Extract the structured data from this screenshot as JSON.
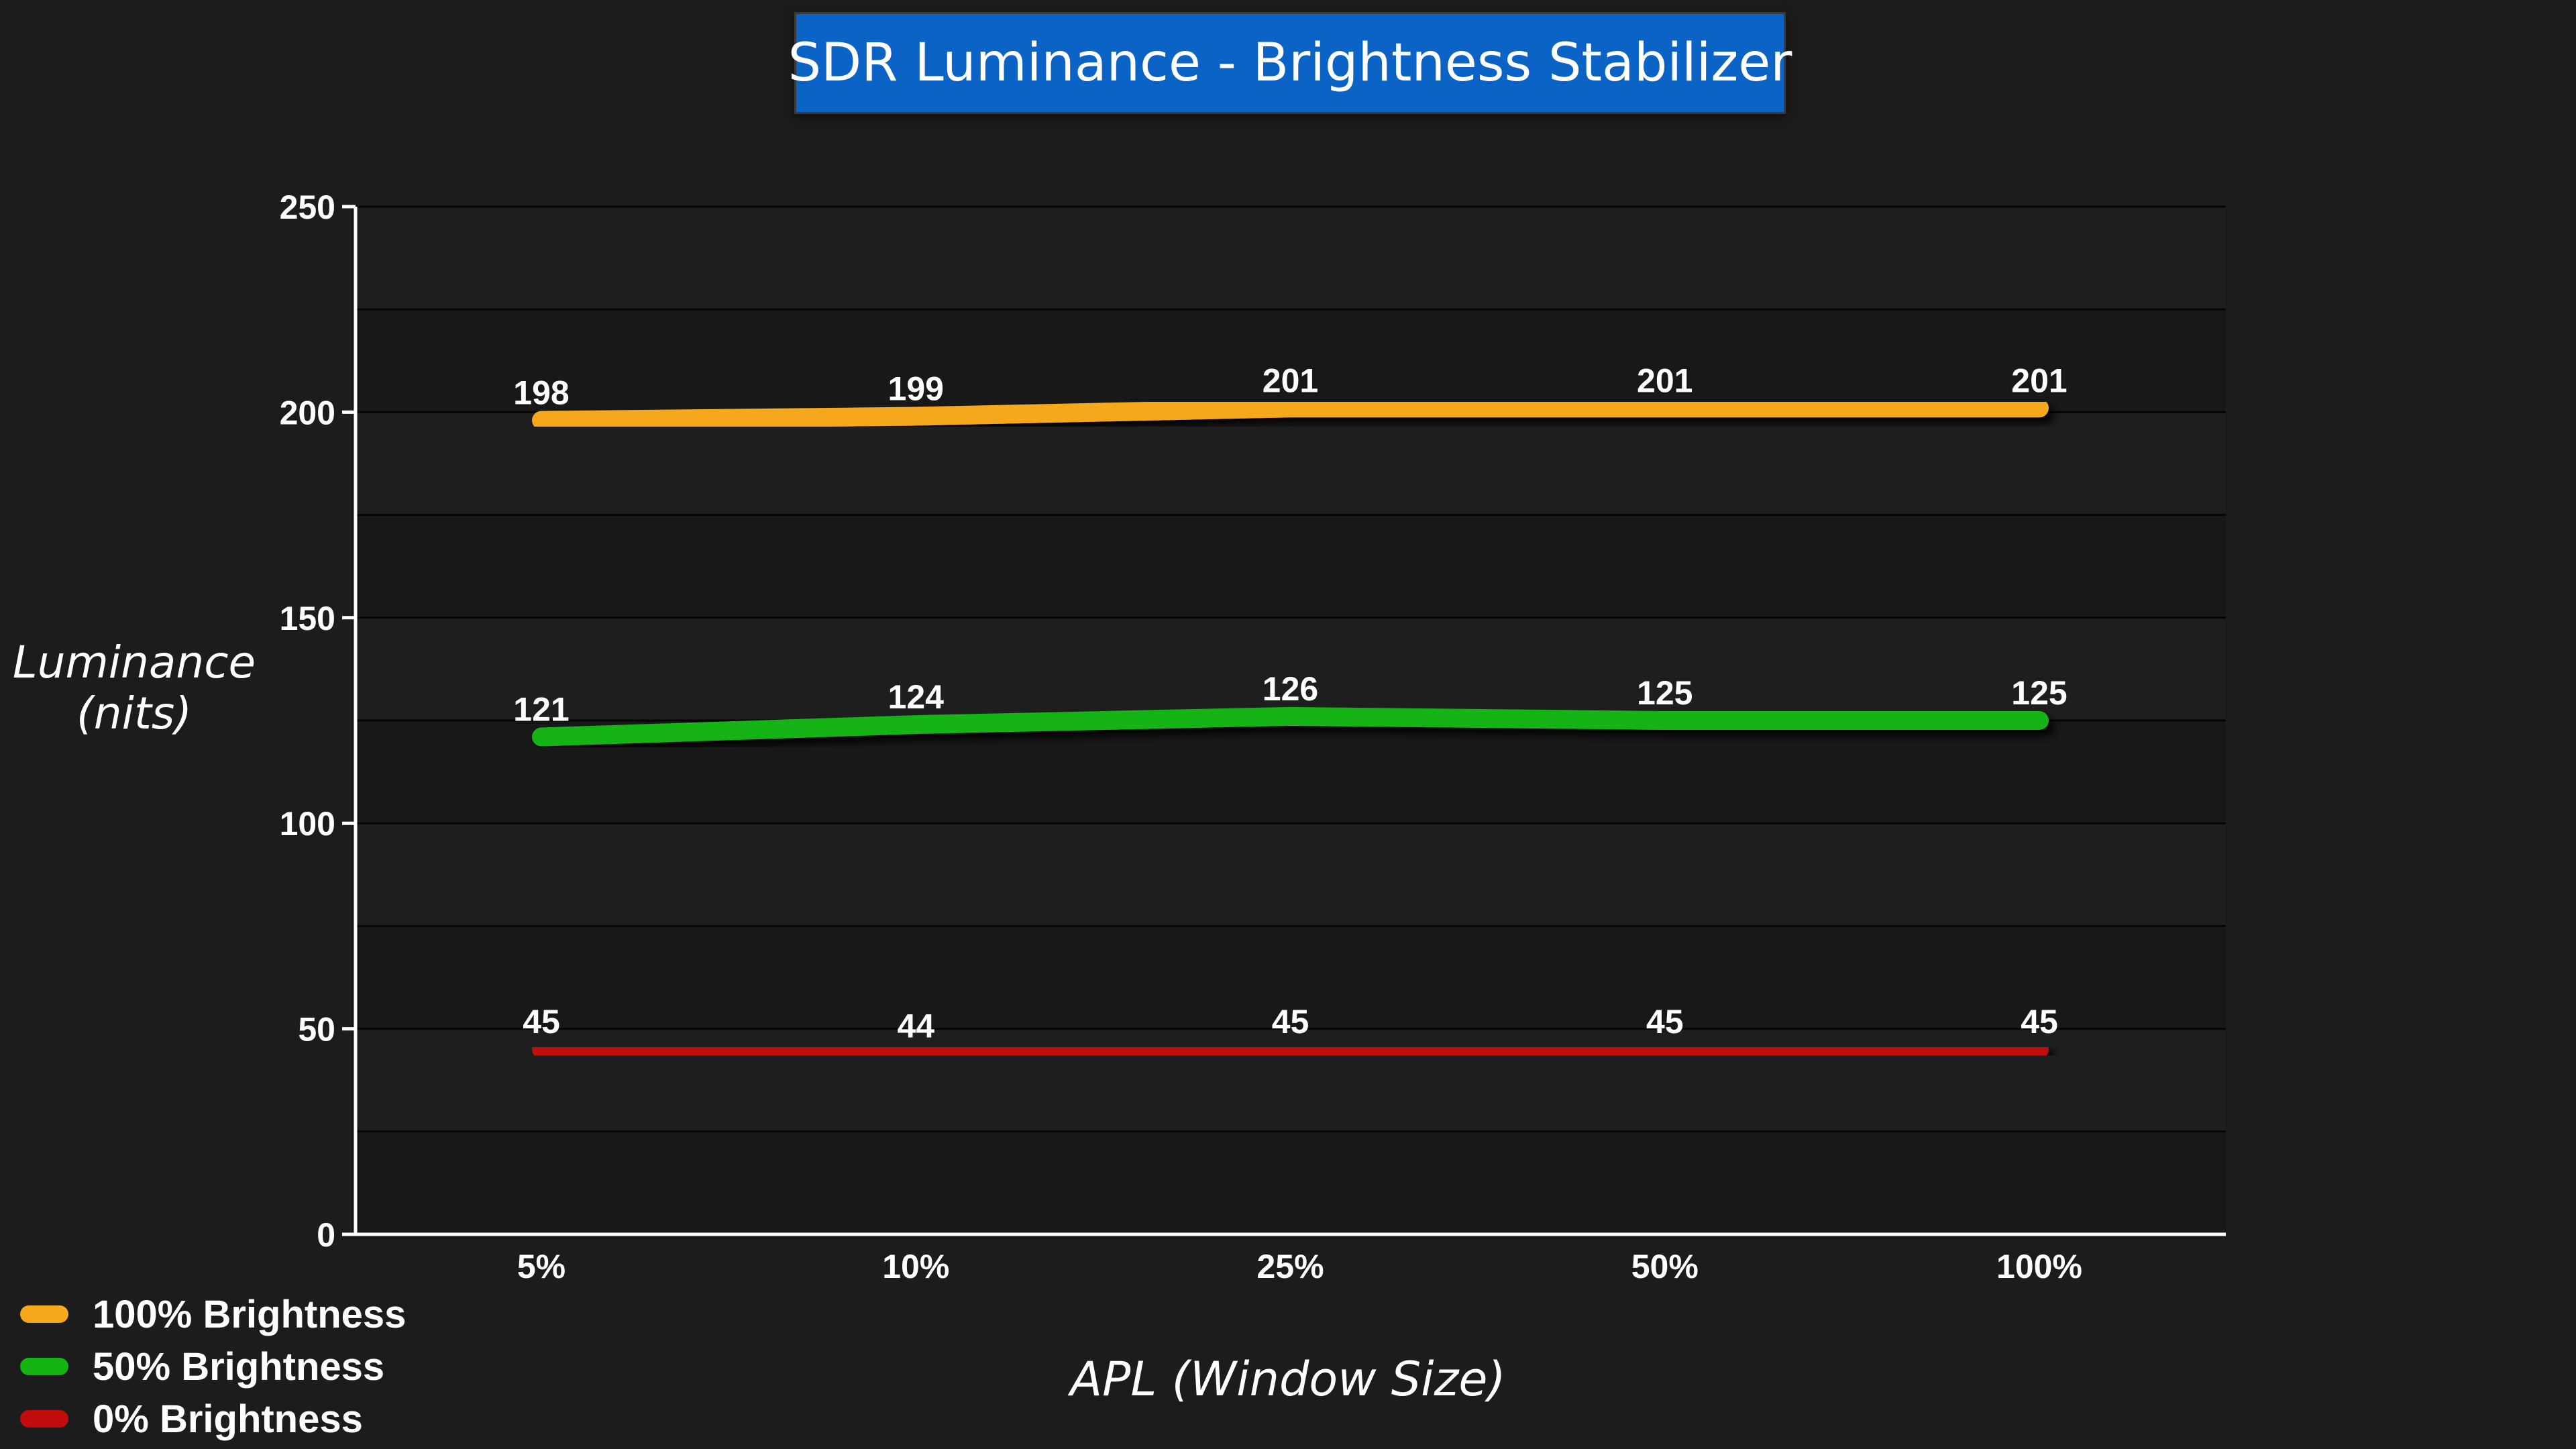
{
  "chart_data": {
    "type": "line",
    "title": "SDR Luminance - Brightness Stabilizer",
    "xlabel": "APL (Window Size)",
    "ylabel": "Luminance (nits)",
    "ylabel_lines": [
      "Luminance",
      "(nits)"
    ],
    "categories": [
      "5%",
      "10%",
      "25%",
      "50%",
      "100%"
    ],
    "ylim": [
      0,
      250
    ],
    "yticks": [
      0,
      50,
      100,
      150,
      200,
      250
    ],
    "grid": true,
    "legend_position": "bottom-left",
    "series": [
      {
        "name": "100% Brightness",
        "color": "#f5a81c",
        "values": [
          198,
          199,
          201,
          201,
          201
        ]
      },
      {
        "name": "50% Brightness",
        "color": "#12b312",
        "values": [
          121,
          124,
          126,
          125,
          125
        ]
      },
      {
        "name": "0% Brightness",
        "color": "#c00d0d",
        "values": [
          45,
          44,
          45,
          45,
          45
        ]
      }
    ]
  }
}
